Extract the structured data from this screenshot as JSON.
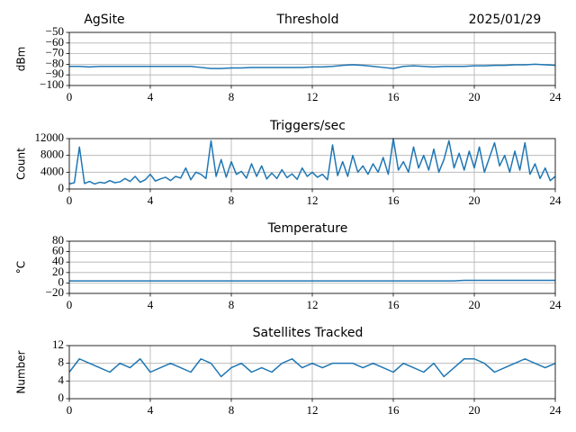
{
  "chart_data": [
    {
      "type": "line",
      "title": "Threshold",
      "annotations": [
        "AgSite",
        "2025/01/29"
      ],
      "ylabel": "dBm",
      "color": "#1f77b4",
      "grid": true,
      "xlim": [
        0,
        24
      ],
      "xticks": [
        0,
        4,
        8,
        12,
        16,
        20,
        24
      ],
      "ylim": [
        -100,
        -50
      ],
      "yticks": [
        {
          "value": -50,
          "label": "−50"
        },
        {
          "value": -60,
          "label": "−60"
        },
        {
          "value": -70,
          "label": "−70"
        },
        {
          "value": -80,
          "label": "−80"
        },
        {
          "value": -90,
          "label": "−90"
        },
        {
          "value": -100,
          "label": "−100"
        }
      ],
      "x": [
        0,
        0.5,
        1,
        1.5,
        2,
        2.5,
        3,
        3.5,
        4,
        4.5,
        5,
        5.5,
        6,
        6.5,
        7,
        7.5,
        8,
        8.5,
        9,
        9.5,
        10,
        10.5,
        11,
        11.5,
        12,
        12.5,
        13,
        13.5,
        14,
        14.5,
        15,
        15.5,
        16,
        16.5,
        17,
        17.5,
        18,
        18.5,
        19,
        19.5,
        20,
        20.5,
        21,
        21.5,
        22,
        22.5,
        23,
        23.5,
        24
      ],
      "values": [
        -82,
        -82,
        -82.5,
        -82,
        -82,
        -82,
        -82,
        -82,
        -82,
        -82,
        -82,
        -82,
        -82,
        -83,
        -84,
        -84,
        -83.5,
        -83.5,
        -83,
        -83,
        -83,
        -83,
        -83,
        -83,
        -82.5,
        -82.5,
        -82,
        -81,
        -80.5,
        -81,
        -82,
        -83,
        -84,
        -82,
        -81.5,
        -82,
        -82.5,
        -82,
        -82,
        -82,
        -81.5,
        -81.5,
        -81,
        -81,
        -80.5,
        -80.5,
        -80,
        -80.5,
        -81
      ]
    },
    {
      "type": "line",
      "title": "Triggers/sec",
      "ylabel": "Count",
      "color": "#1f77b4",
      "grid": true,
      "xlim": [
        0,
        24
      ],
      "xticks": [
        0,
        4,
        8,
        12,
        16,
        20,
        24
      ],
      "ylim": [
        0,
        12000
      ],
      "yticks": [
        0,
        4000,
        8000,
        12000
      ],
      "x": [
        0,
        0.25,
        0.5,
        0.75,
        1,
        1.25,
        1.5,
        1.75,
        2,
        2.25,
        2.5,
        2.75,
        3,
        3.25,
        3.5,
        3.75,
        4,
        4.25,
        4.5,
        4.75,
        5,
        5.25,
        5.5,
        5.75,
        6,
        6.25,
        6.5,
        6.75,
        7,
        7.25,
        7.5,
        7.75,
        8,
        8.25,
        8.5,
        8.75,
        9,
        9.25,
        9.5,
        9.75,
        10,
        10.25,
        10.5,
        10.75,
        11,
        11.25,
        11.5,
        11.75,
        12,
        12.25,
        12.5,
        12.75,
        13,
        13.25,
        13.5,
        13.75,
        14,
        14.25,
        14.5,
        14.75,
        15,
        15.25,
        15.5,
        15.75,
        16,
        16.25,
        16.5,
        16.75,
        17,
        17.25,
        17.5,
        17.75,
        18,
        18.25,
        18.5,
        18.75,
        19,
        19.25,
        19.5,
        19.75,
        20,
        20.25,
        20.5,
        20.75,
        21,
        21.25,
        21.5,
        21.75,
        22,
        22.25,
        22.5,
        22.75,
        23,
        23.25,
        23.5,
        23.75,
        24
      ],
      "values": [
        1200,
        1500,
        10000,
        1300,
        1800,
        1200,
        1600,
        1400,
        2000,
        1500,
        1700,
        2500,
        1800,
        3000,
        1600,
        2200,
        3500,
        1900,
        2400,
        2800,
        2000,
        3000,
        2600,
        5000,
        2200,
        4000,
        3500,
        2500,
        11500,
        3000,
        7000,
        2800,
        6500,
        3500,
        4200,
        2600,
        6000,
        3000,
        5500,
        2400,
        3800,
        2500,
        4600,
        2700,
        3600,
        2300,
        5000,
        3000,
        4000,
        2800,
        3500,
        2200,
        10500,
        3200,
        6500,
        3000,
        8000,
        4000,
        5500,
        3500,
        6000,
        4000,
        7500,
        3500,
        12000,
        4500,
        6500,
        4000,
        10000,
        5000,
        8000,
        4500,
        9500,
        4000,
        7000,
        11500,
        5000,
        8500,
        4500,
        9000,
        5000,
        10000,
        4000,
        7500,
        11000,
        5500,
        8000,
        4000,
        9000,
        4500,
        11000,
        3500,
        6000,
        2500,
        5000,
        2000,
        3000
      ]
    },
    {
      "type": "line",
      "title": "Temperature",
      "ylabel": "°C",
      "color": "#1f77b4",
      "grid": true,
      "xlim": [
        0,
        24
      ],
      "xticks": [
        0,
        4,
        8,
        12,
        16,
        20,
        24
      ],
      "ylim": [
        -20,
        80
      ],
      "yticks": [
        {
          "value": -20,
          "label": "−20"
        },
        0,
        20,
        40,
        60,
        80
      ],
      "x": [
        0,
        0.5,
        1,
        1.5,
        2,
        2.5,
        3,
        3.5,
        4,
        4.5,
        5,
        5.5,
        6,
        6.5,
        7,
        7.5,
        8,
        8.5,
        9,
        9.5,
        10,
        10.5,
        11,
        11.5,
        12,
        12.5,
        13,
        13.5,
        14,
        14.5,
        15,
        15.5,
        16,
        16.5,
        17,
        17.5,
        18,
        18.5,
        19,
        19.5,
        20,
        20.5,
        21,
        21.5,
        22,
        22.5,
        23,
        23.5,
        24
      ],
      "values": [
        4,
        4,
        4,
        4,
        4,
        4,
        4,
        4,
        4,
        4,
        4,
        4,
        4,
        4,
        4,
        4,
        4,
        4,
        4,
        4,
        4,
        4,
        4,
        4,
        4,
        4,
        4,
        4,
        4,
        4,
        4,
        4,
        4,
        4,
        4,
        4,
        4,
        4,
        4,
        5,
        5,
        5,
        5,
        5,
        5,
        5,
        5,
        5,
        5
      ]
    },
    {
      "type": "line",
      "title": "Satellites Tracked",
      "ylabel": "Number",
      "color": "#1f77b4",
      "grid": true,
      "xlim": [
        0,
        24
      ],
      "xticks": [
        0,
        4,
        8,
        12,
        16,
        20,
        24
      ],
      "ylim": [
        0,
        12
      ],
      "yticks": [
        0,
        4,
        8,
        12
      ],
      "x": [
        0,
        0.5,
        1,
        1.5,
        2,
        2.5,
        3,
        3.5,
        4,
        4.5,
        5,
        5.5,
        6,
        6.5,
        7,
        7.5,
        8,
        8.5,
        9,
        9.5,
        10,
        10.5,
        11,
        11.5,
        12,
        12.5,
        13,
        13.5,
        14,
        14.5,
        15,
        15.5,
        16,
        16.5,
        17,
        17.5,
        18,
        18.5,
        19,
        19.5,
        20,
        20.5,
        21,
        21.5,
        22,
        22.5,
        23,
        23.5,
        24
      ],
      "values": [
        6,
        9,
        8,
        7,
        6,
        8,
        7,
        9,
        6,
        7,
        8,
        7,
        6,
        9,
        8,
        5,
        7,
        8,
        6,
        7,
        6,
        8,
        9,
        7,
        8,
        7,
        8,
        8,
        8,
        7,
        8,
        7,
        6,
        8,
        7,
        6,
        8,
        5,
        7,
        9,
        9,
        8,
        6,
        7,
        8,
        9,
        8,
        7,
        8
      ]
    }
  ]
}
